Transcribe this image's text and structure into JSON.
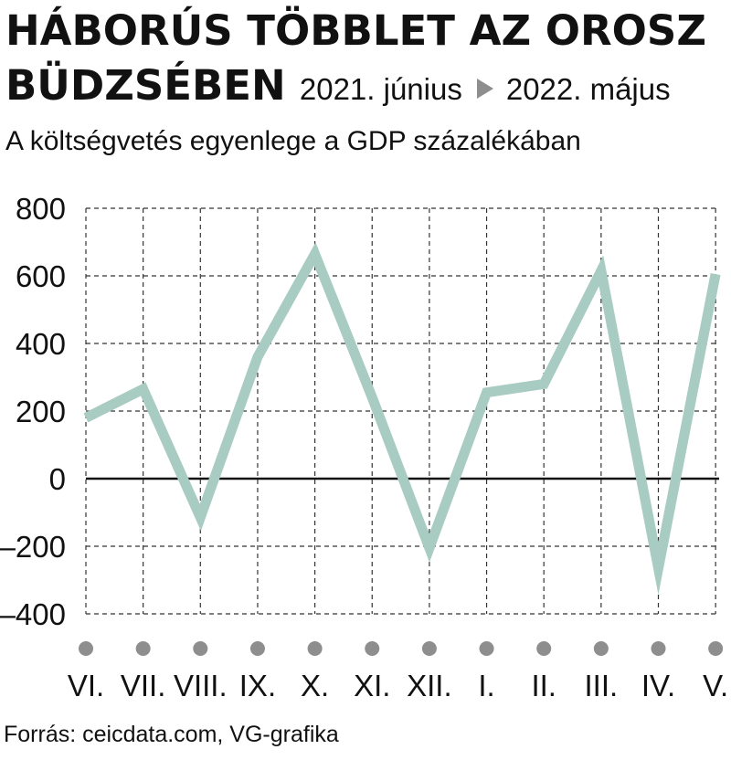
{
  "header": {
    "title_line1": "HÁBORÚS TÖBBLET AZ OROSZ",
    "title_line2": "BÜDZSÉBEN",
    "period_start": "2021. június",
    "period_end": "2022. május",
    "arrow_icon": "triangle-right-icon",
    "subtitle": "A költségvetés egyenlege a GDP százalékában"
  },
  "footer": {
    "source": "Forrás:  ceicdata.com, VG-grafika"
  },
  "colors": {
    "line": "#a8cbc2",
    "grid": "#333333",
    "zero_line": "#111111",
    "marker": "#8e8e8e",
    "arrow": "#8e8e8e"
  },
  "chart_data": {
    "type": "line",
    "categories": [
      "VI.",
      "VII.",
      "VIII.",
      "IX.",
      "X.",
      "XI.",
      "XII.",
      "I.",
      "II.",
      "III.",
      "IV.",
      "V."
    ],
    "series": [
      {
        "values": [
          180,
          265,
          -115,
          360,
          665,
          240,
          -205,
          255,
          280,
          615,
          -265,
          605
        ]
      }
    ],
    "ylim": [
      -400,
      800
    ],
    "yticks": [
      "800",
      "600",
      "400",
      "200",
      "0",
      "–200",
      "–400"
    ],
    "ytick_values": [
      800,
      600,
      400,
      200,
      0,
      -200,
      -400
    ],
    "grid": true,
    "grid_style": "dashed",
    "title": "",
    "xlabel": "",
    "ylabel": ""
  }
}
